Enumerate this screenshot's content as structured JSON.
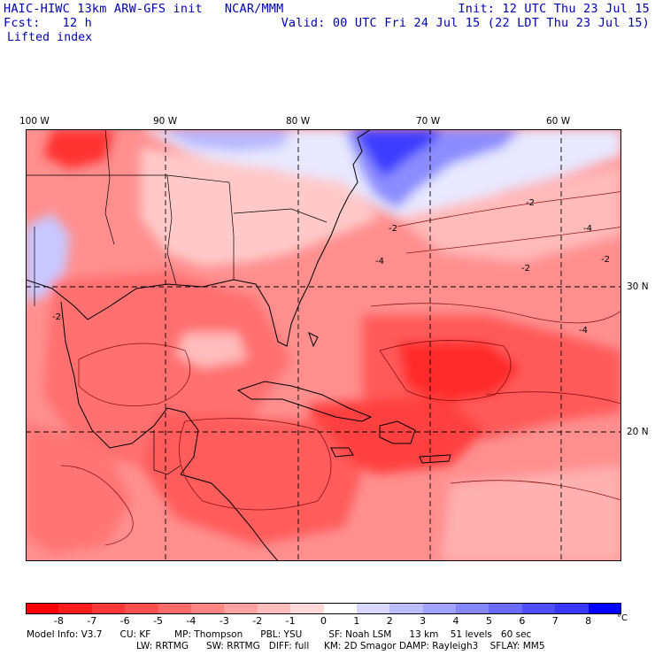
{
  "header": {
    "model": "HAIC-HIWC 13km ARW-GFS init   NCAR/MMM",
    "fcst": "Fcst:   12 h",
    "field": "Lifted index",
    "init": "Init: 12 UTC Thu 23 Jul 15",
    "valid": "Valid: 00 UTC Fri 24 Jul 15 (22 LDT Thu 23 Jul 15)"
  },
  "map": {
    "lon_labels": [
      "100 W",
      "90 W",
      "80 W",
      "70 W",
      "60 W"
    ],
    "lat_labels": [
      "30 N",
      "20 N"
    ],
    "contour_labels": [
      "-2",
      "-4",
      "-2",
      "-4",
      "-2",
      "-2",
      "-4",
      "-2"
    ]
  },
  "colorbar": {
    "unit": "°C",
    "ticks": [
      "-8",
      "-7",
      "-6",
      "-5",
      "-4",
      "-3",
      "-2",
      "-1",
      "0",
      "1",
      "2",
      "3",
      "4",
      "5",
      "6",
      "7",
      "8"
    ],
    "colors": [
      "#ff0000",
      "#ff1c1c",
      "#ff3737",
      "#ff5050",
      "#ff6b6b",
      "#ff8585",
      "#ffa2a2",
      "#ffbdbd",
      "#ffd8d8",
      "#ffffff",
      "#d8d8ff",
      "#bdbdff",
      "#a2a2ff",
      "#8585ff",
      "#6b6bff",
      "#4f4fff",
      "#3737ff",
      "#0000ff"
    ]
  },
  "footer": {
    "line1": "Model Info: V3.7      CU: KF        MP: Thompson      PBL: YSU         SF: Noah LSM      13 km    51 levels   60 sec",
    "line2": "LW: RRTMG      SW: RRTMG   DIFF: full     KM: 2D Smagor DAMP: Rayleigh3    SFLAY: MM5"
  }
}
